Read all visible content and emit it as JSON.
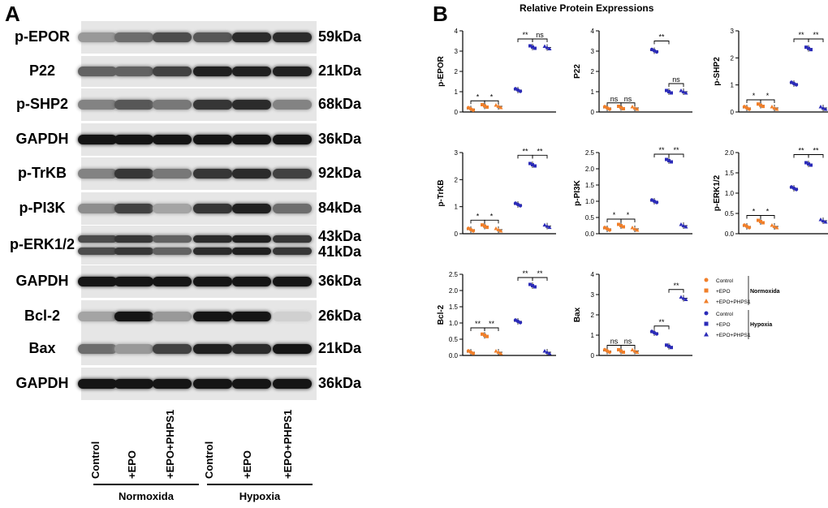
{
  "figure": {
    "panel_a_letter": "A",
    "panel_b_letter": "B",
    "panel_b_title": "Relative Protein Expressions"
  },
  "blot": {
    "rows": [
      {
        "label": "p-EPOR",
        "kda": "59kDa"
      },
      {
        "label": "P22",
        "kda": "21kDa"
      },
      {
        "label": "p-SHP2",
        "kda": "68kDa"
      },
      {
        "label": "GAPDH",
        "kda": "36kDa"
      },
      {
        "label": "p-TrKB",
        "kda": "92kDa"
      },
      {
        "label": "p-PI3K",
        "kda": "84kDa"
      },
      {
        "label": "p-ERK1/2",
        "kda": "43kDa",
        "kda2": "41kDa"
      },
      {
        "label": "GAPDH",
        "kda": "36kDa"
      },
      {
        "label": "Bcl-2",
        "kda": "26kDa"
      },
      {
        "label": "Bax",
        "kda": "21kDa"
      },
      {
        "label": "GAPDH",
        "kda": "36kDa"
      }
    ],
    "band_intensity": [
      [
        0.35,
        0.55,
        0.7,
        0.65,
        0.85,
        0.85
      ],
      [
        0.6,
        0.6,
        0.75,
        0.9,
        0.9,
        0.9
      ],
      [
        0.45,
        0.65,
        0.5,
        0.8,
        0.85,
        0.45
      ],
      [
        0.95,
        0.95,
        0.95,
        0.95,
        0.95,
        0.95
      ],
      [
        0.45,
        0.8,
        0.5,
        0.8,
        0.85,
        0.75
      ],
      [
        0.4,
        0.75,
        0.3,
        0.8,
        0.9,
        0.55
      ],
      [
        0.7,
        0.8,
        0.6,
        0.85,
        0.9,
        0.8
      ],
      [
        0.95,
        0.95,
        0.95,
        0.95,
        0.95,
        0.95
      ],
      [
        0.3,
        0.95,
        0.35,
        0.95,
        0.95,
        0.1
      ],
      [
        0.55,
        0.35,
        0.75,
        0.9,
        0.85,
        0.95
      ],
      [
        0.95,
        0.95,
        0.95,
        0.95,
        0.95,
        0.95
      ]
    ],
    "lanes": [
      "Control",
      "+EPO",
      "+EPO+PHPS1",
      "Control",
      "+EPO",
      "+EPO+PHPS1"
    ],
    "groups": [
      "Normoxida",
      "Hypoxia"
    ]
  },
  "legend": {
    "items": [
      {
        "label": "Control",
        "color": "#f07f2a",
        "shape": "circle"
      },
      {
        "label": "+EPO",
        "color": "#f07f2a",
        "shape": "square"
      },
      {
        "label": "+EPO+PHPS1",
        "color": "#f07f2a",
        "shape": "triangle"
      },
      {
        "label": "Control",
        "color": "#2b2bb8",
        "shape": "circle"
      },
      {
        "label": "+EPO",
        "color": "#2b2bb8",
        "shape": "square"
      },
      {
        "label": "+EPO+PHPS1",
        "color": "#2b2bb8",
        "shape": "triangle"
      }
    ],
    "group_normoxida": "Normoxida",
    "group_hypoxia": "Hypoxia"
  },
  "chart_data": [
    {
      "type": "scatter",
      "ylabel": "p-EPOR",
      "ylim": [
        0,
        4
      ],
      "ticks": [
        "0",
        "1",
        "2",
        "3",
        "4"
      ],
      "values": [
        0.15,
        0.3,
        0.28,
        1.08,
        3.2,
        3.18
      ],
      "sig": [
        {
          "a": 0,
          "b": 1,
          "t": "*",
          "y": 0.55
        },
        {
          "a": 1,
          "b": 2,
          "t": "*",
          "y": 0.55
        },
        {
          "a": 3,
          "b": 4,
          "t": "**",
          "y": 3.6
        },
        {
          "a": 4,
          "b": 5,
          "t": "ns",
          "y": 3.6
        }
      ]
    },
    {
      "type": "scatter",
      "ylabel": "P22",
      "ylim": [
        0,
        4
      ],
      "ticks": [
        "0",
        "1",
        "2",
        "3",
        "4"
      ],
      "values": [
        0.2,
        0.22,
        0.2,
        3.02,
        1.0,
        1.0
      ],
      "sig": [
        {
          "a": 0,
          "b": 1,
          "t": "ns",
          "y": 0.45
        },
        {
          "a": 1,
          "b": 2,
          "t": "ns",
          "y": 0.45
        },
        {
          "a": 3,
          "b": 4,
          "t": "**",
          "y": 3.5
        },
        {
          "a": 4,
          "b": 5,
          "t": "ns",
          "y": 1.4
        }
      ]
    },
    {
      "type": "scatter",
      "ylabel": "p-SHP2",
      "ylim": [
        0,
        3
      ],
      "ticks": [
        "0",
        "1",
        "2",
        "3"
      ],
      "values": [
        0.15,
        0.25,
        0.15,
        1.05,
        2.35,
        0.15
      ],
      "sig": [
        {
          "a": 0,
          "b": 1,
          "t": "*",
          "y": 0.45
        },
        {
          "a": 1,
          "b": 2,
          "t": "*",
          "y": 0.45
        },
        {
          "a": 3,
          "b": 4,
          "t": "**",
          "y": 2.7
        },
        {
          "a": 4,
          "b": 5,
          "t": "**",
          "y": 2.7
        }
      ]
    },
    {
      "type": "scatter",
      "ylabel": "p-TrKB",
      "ylim": [
        0,
        3
      ],
      "ticks": [
        "0",
        "1",
        "2",
        "3"
      ],
      "values": [
        0.15,
        0.28,
        0.15,
        1.08,
        2.55,
        0.28
      ],
      "sig": [
        {
          "a": 0,
          "b": 1,
          "t": "*",
          "y": 0.5
        },
        {
          "a": 1,
          "b": 2,
          "t": "*",
          "y": 0.5
        },
        {
          "a": 3,
          "b": 4,
          "t": "**",
          "y": 2.9
        },
        {
          "a": 4,
          "b": 5,
          "t": "**",
          "y": 2.9
        }
      ]
    },
    {
      "type": "scatter",
      "ylabel": "p-PI3K",
      "ylim": [
        0,
        2.5
      ],
      "ticks": [
        "0.0",
        "0.5",
        "1.0",
        "1.5",
        "2.0",
        "2.5"
      ],
      "values": [
        0.15,
        0.25,
        0.15,
        1.0,
        2.25,
        0.25
      ],
      "sig": [
        {
          "a": 0,
          "b": 1,
          "t": "*",
          "y": 0.45
        },
        {
          "a": 1,
          "b": 2,
          "t": "*",
          "y": 0.45
        },
        {
          "a": 3,
          "b": 4,
          "t": "**",
          "y": 2.45
        },
        {
          "a": 4,
          "b": 5,
          "t": "**",
          "y": 2.45
        }
      ]
    },
    {
      "type": "scatter",
      "ylabel": "p-ERK1/2",
      "ylim": [
        0,
        2.0
      ],
      "ticks": [
        "0.0",
        "0.5",
        "1.0",
        "1.5",
        "2.0"
      ],
      "values": [
        0.18,
        0.3,
        0.18,
        1.12,
        1.72,
        0.32
      ],
      "sig": [
        {
          "a": 0,
          "b": 1,
          "t": "*",
          "y": 0.45
        },
        {
          "a": 1,
          "b": 2,
          "t": "*",
          "y": 0.45
        },
        {
          "a": 3,
          "b": 4,
          "t": "**",
          "y": 1.95
        },
        {
          "a": 4,
          "b": 5,
          "t": "**",
          "y": 1.95
        }
      ]
    },
    {
      "type": "scatter",
      "ylabel": "Bcl-2",
      "ylim": [
        0,
        2.5
      ],
      "ticks": [
        "0.0",
        "0.5",
        "1.0",
        "1.5",
        "2.0",
        "2.5"
      ],
      "values": [
        0.1,
        0.62,
        0.1,
        1.05,
        2.15,
        0.1
      ],
      "sig": [
        {
          "a": 0,
          "b": 1,
          "t": "**",
          "y": 0.85
        },
        {
          "a": 1,
          "b": 2,
          "t": "**",
          "y": 0.85
        },
        {
          "a": 3,
          "b": 4,
          "t": "**",
          "y": 2.4
        },
        {
          "a": 4,
          "b": 5,
          "t": "**",
          "y": 2.4
        }
      ]
    },
    {
      "type": "scatter",
      "ylabel": "Bax",
      "ylim": [
        0,
        4
      ],
      "ticks": [
        "0",
        "1",
        "2",
        "3",
        "4"
      ],
      "values": [
        0.22,
        0.22,
        0.22,
        1.12,
        0.45,
        2.82
      ],
      "sig": [
        {
          "a": 0,
          "b": 1,
          "t": "ns",
          "y": 0.5
        },
        {
          "a": 1,
          "b": 2,
          "t": "ns",
          "y": 0.5
        },
        {
          "a": 3,
          "b": 4,
          "t": "**",
          "y": 1.45
        },
        {
          "a": 4,
          "b": 5,
          "t": "**",
          "y": 3.25
        }
      ]
    }
  ]
}
